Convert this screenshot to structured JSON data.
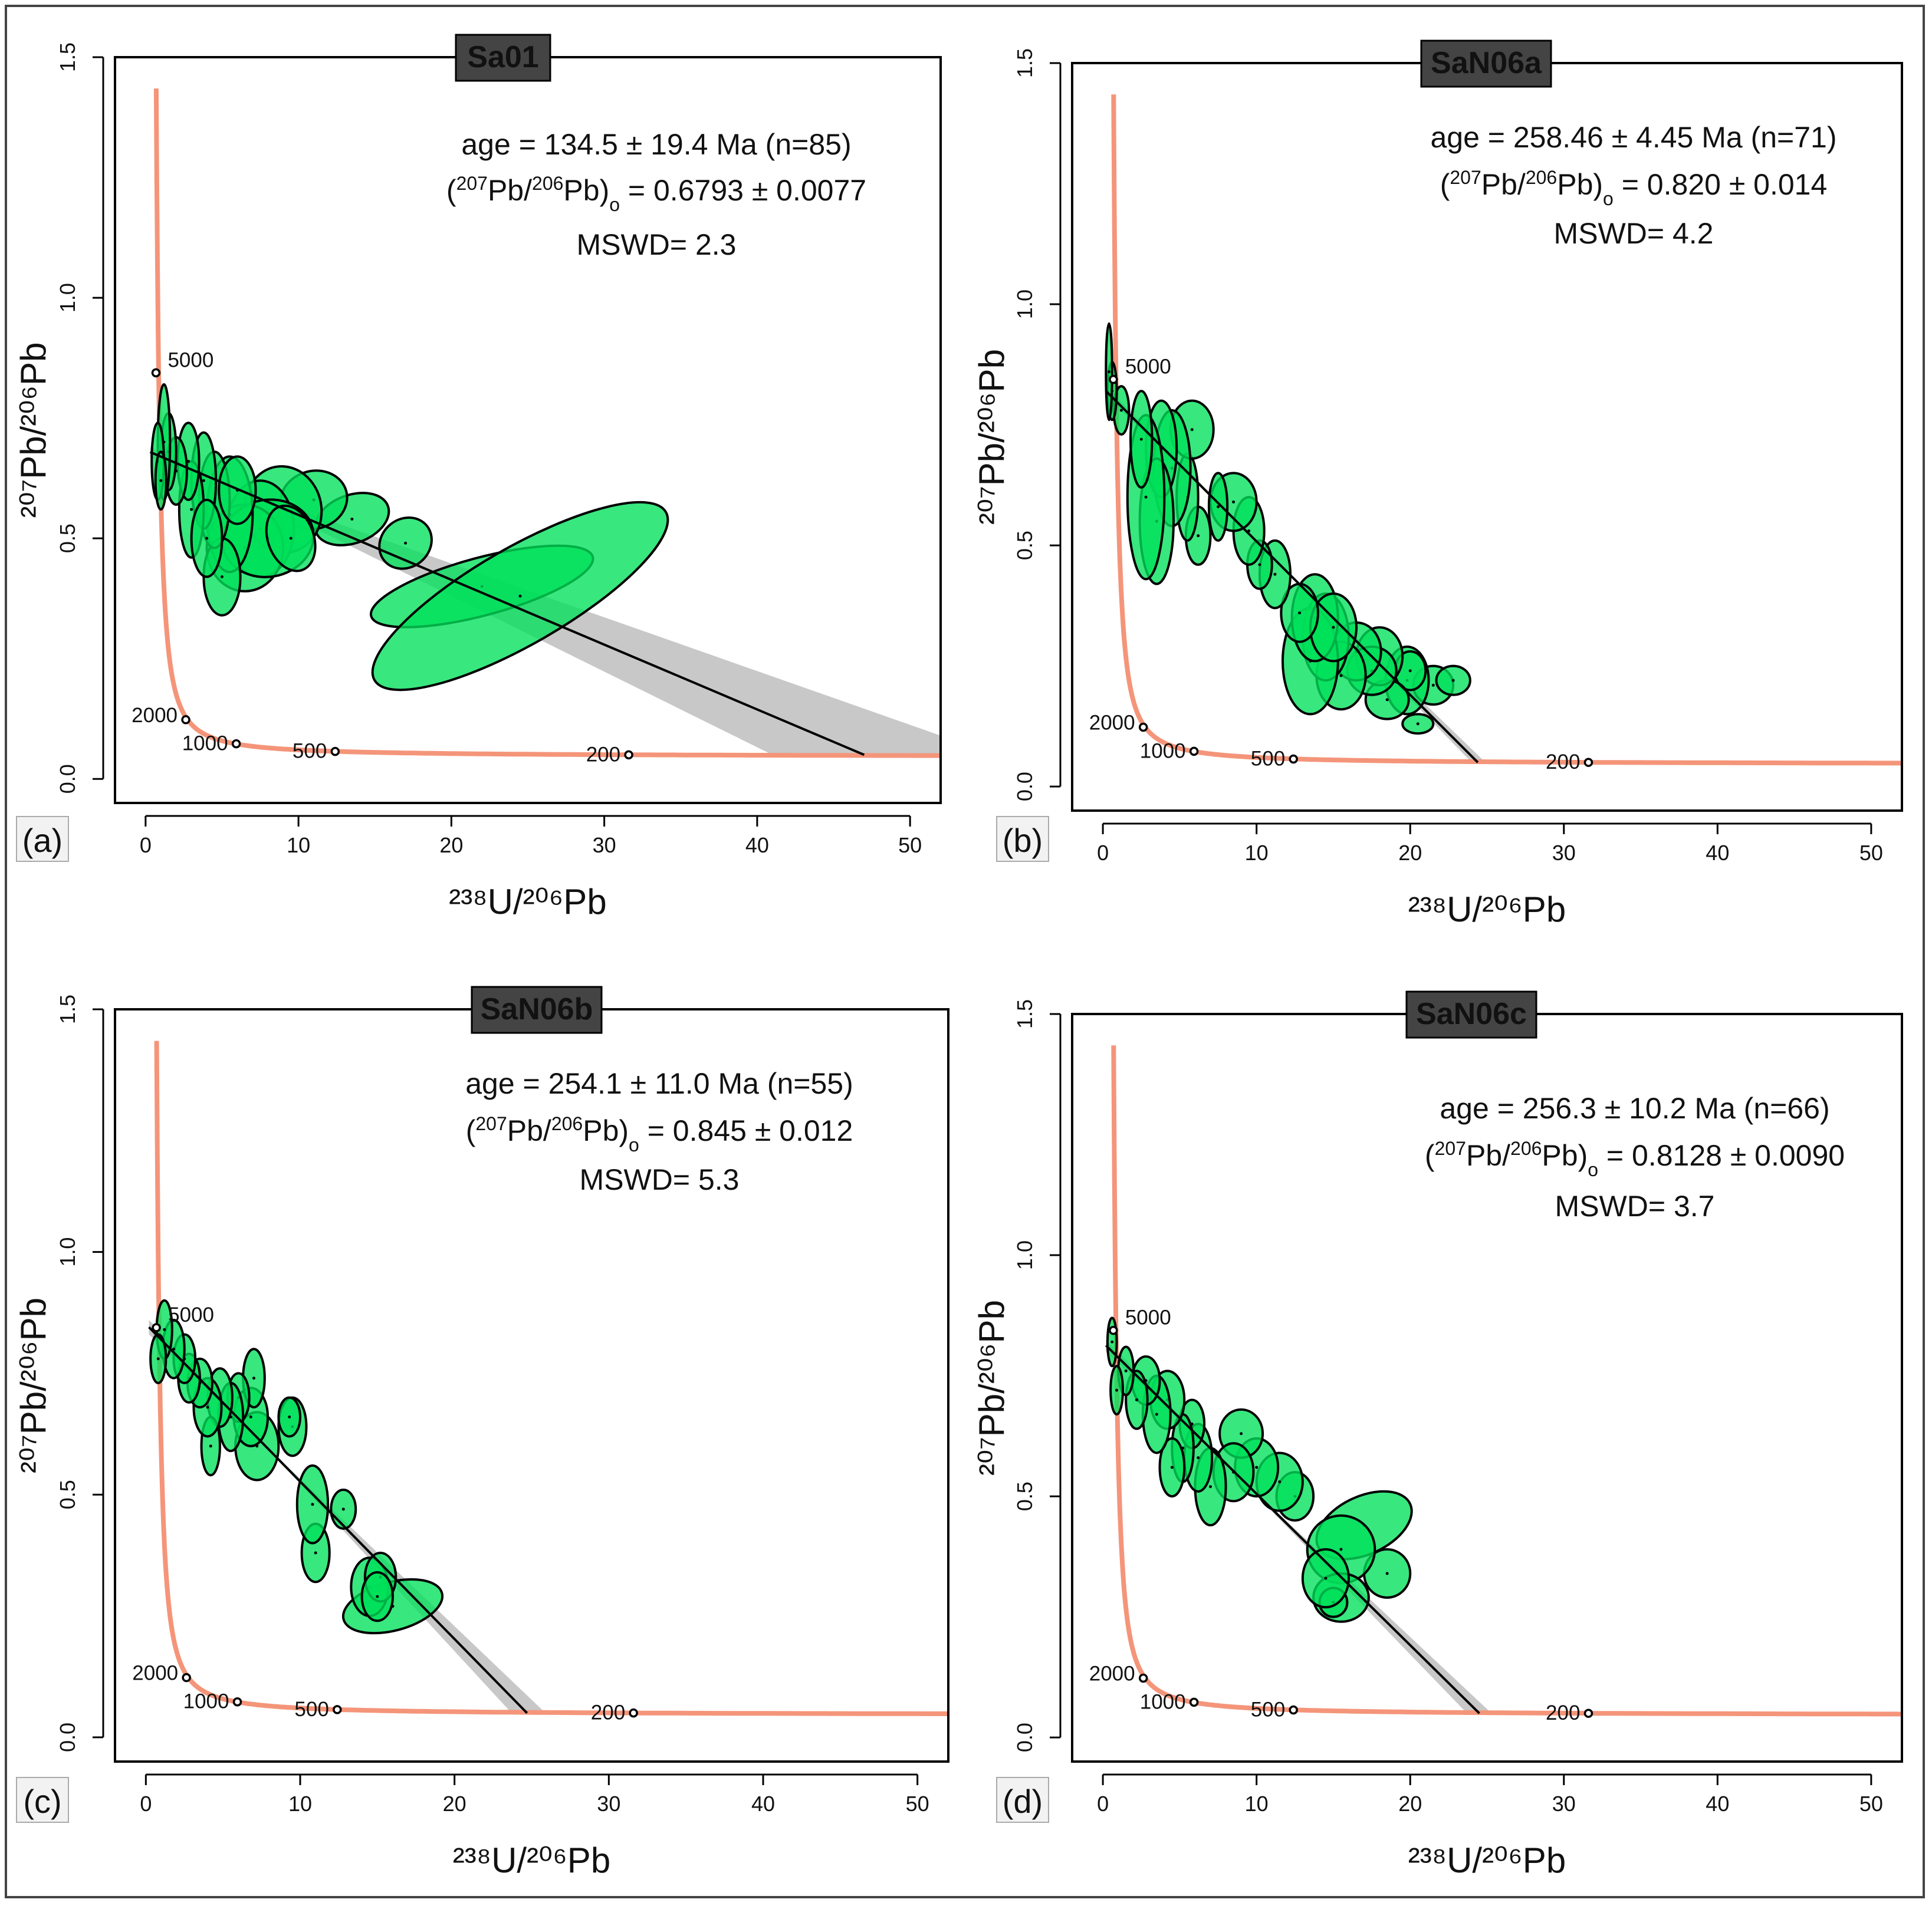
{
  "colors": {
    "curve": "#f4957a",
    "ellipse_fill": "#00e05a",
    "ellipse_stroke": "#000000",
    "band": "#c8c8c8",
    "title_bg": "#444444",
    "title_text": "#f5b800"
  },
  "chart_data": [
    {
      "type": "scatter",
      "kind": "Tera-Wasserburg concordia",
      "panel": "(a)",
      "title": "Sa01",
      "xlabel": "²³⁸U/²⁰⁶Pb",
      "ylabel": "²⁰⁷Pb/²⁰⁶Pb",
      "xlim": [
        -2,
        52
      ],
      "ylim": [
        -0.05,
        1.5
      ],
      "xticks": [
        "0",
        "10",
        "20",
        "30",
        "40",
        "50"
      ],
      "yticks": [
        "0.0",
        "0.5",
        "1.0",
        "1.5"
      ],
      "annotation": {
        "age": "age = 134.5 ± 19.4 Ma (n=85)",
        "intercept_prefix": "(",
        "intercept_sup1": "207",
        "intercept_mid": "Pb/",
        "intercept_sup2": "206",
        "intercept_pb": "Pb)",
        "intercept_sub": "o",
        "intercept_value": " = 0.6793 ± 0.0077",
        "mswd": "MSWD= 2.3"
      },
      "concordia_labels": [
        {
          "age": "5000",
          "x": 0.68,
          "y": 0.844
        },
        {
          "age": "2000",
          "x": 2.63,
          "y": 0.123
        },
        {
          "age": "1000",
          "x": 5.93,
          "y": 0.073
        },
        {
          "age": "500",
          "x": 12.4,
          "y": 0.057
        },
        {
          "age": "200",
          "x": 31.6,
          "y": 0.05
        }
      ],
      "regression": {
        "x0": 0.3,
        "y0": 0.6793,
        "x1": 47.0,
        "y1": 0.05
      },
      "band": [
        [
          0.3,
          0.69
        ],
        [
          41,
          0.05
        ],
        [
          52,
          0.05
        ],
        [
          52,
          0.09
        ],
        [
          0.3,
          0.668
        ]
      ],
      "ellipses": [
        {
          "x": 22.0,
          "y": 0.4,
          "rx": 7.5,
          "ry": 0.06,
          "rot": 15
        },
        {
          "x": 24.5,
          "y": 0.38,
          "rx": 11.0,
          "ry": 0.1,
          "rot": 30
        },
        {
          "x": 17.0,
          "y": 0.49,
          "rx": 1.8,
          "ry": 0.05,
          "rot": 40
        },
        {
          "x": 13.5,
          "y": 0.54,
          "rx": 2.5,
          "ry": 0.05,
          "rot": 20
        },
        {
          "x": 11.0,
          "y": 0.58,
          "rx": 2.2,
          "ry": 0.06,
          "rot": 15
        },
        {
          "x": 9.0,
          "y": 0.56,
          "rx": 2.5,
          "ry": 0.09,
          "rot": 10
        },
        {
          "x": 7.5,
          "y": 0.52,
          "rx": 2.2,
          "ry": 0.1,
          "rot": 0
        },
        {
          "x": 6.5,
          "y": 0.48,
          "rx": 2.5,
          "ry": 0.09,
          "rot": 0
        },
        {
          "x": 8.0,
          "y": 0.5,
          "rx": 3.0,
          "ry": 0.08,
          "rot": 10
        },
        {
          "x": 5.5,
          "y": 0.55,
          "rx": 1.5,
          "ry": 0.12,
          "rot": 0
        },
        {
          "x": 5.0,
          "y": 0.42,
          "rx": 1.2,
          "ry": 0.08,
          "rot": 0
        },
        {
          "x": 4.5,
          "y": 0.58,
          "rx": 1.0,
          "ry": 0.1,
          "rot": 0
        },
        {
          "x": 3.8,
          "y": 0.62,
          "rx": 0.8,
          "ry": 0.1,
          "rot": 0
        },
        {
          "x": 3.0,
          "y": 0.56,
          "rx": 0.8,
          "ry": 0.1,
          "rot": 0
        },
        {
          "x": 2.8,
          "y": 0.66,
          "rx": 0.7,
          "ry": 0.08,
          "rot": 0
        },
        {
          "x": 2.0,
          "y": 0.64,
          "rx": 0.7,
          "ry": 0.07,
          "rot": 0
        },
        {
          "x": 1.5,
          "y": 0.68,
          "rx": 0.5,
          "ry": 0.08,
          "rot": 0
        },
        {
          "x": 1.2,
          "y": 0.7,
          "rx": 0.4,
          "ry": 0.12,
          "rot": 0
        },
        {
          "x": 0.8,
          "y": 0.66,
          "rx": 0.4,
          "ry": 0.08,
          "rot": 0
        },
        {
          "x": 1.0,
          "y": 0.62,
          "rx": 0.35,
          "ry": 0.06,
          "rot": 0
        },
        {
          "x": 6.0,
          "y": 0.6,
          "rx": 1.2,
          "ry": 0.07,
          "rot": 0
        },
        {
          "x": 9.5,
          "y": 0.5,
          "rx": 1.5,
          "ry": 0.07,
          "rot": 20
        },
        {
          "x": 4.0,
          "y": 0.5,
          "rx": 1.0,
          "ry": 0.08,
          "rot": 0
        }
      ]
    },
    {
      "type": "scatter",
      "kind": "Tera-Wasserburg concordia",
      "panel": "(b)",
      "title": "SaN06a",
      "xlabel": "²³⁸U/²⁰⁶Pb",
      "ylabel": "²⁰⁷Pb/²⁰⁶Pb",
      "xlim": [
        -2,
        52
      ],
      "ylim": [
        -0.05,
        1.5
      ],
      "xticks": [
        "0",
        "10",
        "20",
        "30",
        "40",
        "50"
      ],
      "yticks": [
        "0.0",
        "0.5",
        "1.0",
        "1.5"
      ],
      "annotation": {
        "age": "age = 258.46 ± 4.45 Ma (n=71)",
        "intercept_prefix": "(",
        "intercept_sup1": "207",
        "intercept_mid": "Pb/",
        "intercept_sup2": "206",
        "intercept_pb": "Pb)",
        "intercept_sub": "o",
        "intercept_value": " = 0.820 ± 0.014",
        "mswd": "MSWD= 4.2"
      },
      "concordia_labels": [
        {
          "age": "5000",
          "x": 0.68,
          "y": 0.844
        },
        {
          "age": "2000",
          "x": 2.63,
          "y": 0.123
        },
        {
          "age": "1000",
          "x": 5.93,
          "y": 0.073
        },
        {
          "age": "500",
          "x": 12.4,
          "y": 0.057
        },
        {
          "age": "200",
          "x": 31.6,
          "y": 0.05
        }
      ],
      "regression": {
        "x0": 0.2,
        "y0": 0.82,
        "x1": 24.4,
        "y1": 0.05
      },
      "band": [
        [
          0.2,
          0.83
        ],
        [
          24.0,
          0.05
        ],
        [
          24.9,
          0.05
        ],
        [
          0.2,
          0.81
        ]
      ],
      "ellipses": [
        {
          "x": 20.5,
          "y": 0.13,
          "rx": 1.0,
          "ry": 0.02,
          "rot": 0
        },
        {
          "x": 21.5,
          "y": 0.21,
          "rx": 1.3,
          "ry": 0.04,
          "rot": 0
        },
        {
          "x": 22.8,
          "y": 0.22,
          "rx": 1.1,
          "ry": 0.03,
          "rot": 0
        },
        {
          "x": 19.8,
          "y": 0.22,
          "rx": 1.4,
          "ry": 0.07,
          "rot": 0
        },
        {
          "x": 20.0,
          "y": 0.24,
          "rx": 1.0,
          "ry": 0.04,
          "rot": 0
        },
        {
          "x": 18.5,
          "y": 0.18,
          "rx": 1.4,
          "ry": 0.04,
          "rot": 0
        },
        {
          "x": 18.0,
          "y": 0.27,
          "rx": 1.5,
          "ry": 0.06,
          "rot": 0
        },
        {
          "x": 17.5,
          "y": 0.24,
          "rx": 1.6,
          "ry": 0.05,
          "rot": 0
        },
        {
          "x": 16.5,
          "y": 0.28,
          "rx": 1.6,
          "ry": 0.06,
          "rot": 0
        },
        {
          "x": 15.5,
          "y": 0.23,
          "rx": 1.6,
          "ry": 0.07,
          "rot": 0
        },
        {
          "x": 14.5,
          "y": 0.31,
          "rx": 1.5,
          "ry": 0.09,
          "rot": 0
        },
        {
          "x": 13.5,
          "y": 0.26,
          "rx": 1.8,
          "ry": 0.11,
          "rot": 0
        },
        {
          "x": 13.8,
          "y": 0.35,
          "rx": 1.5,
          "ry": 0.09,
          "rot": 0
        },
        {
          "x": 15.0,
          "y": 0.33,
          "rx": 1.5,
          "ry": 0.07,
          "rot": 0
        },
        {
          "x": 12.8,
          "y": 0.36,
          "rx": 1.2,
          "ry": 0.06,
          "rot": 0
        },
        {
          "x": 11.2,
          "y": 0.44,
          "rx": 1.0,
          "ry": 0.07,
          "rot": 0
        },
        {
          "x": 10.2,
          "y": 0.46,
          "rx": 0.8,
          "ry": 0.05,
          "rot": 0
        },
        {
          "x": 9.5,
          "y": 0.53,
          "rx": 1.0,
          "ry": 0.07,
          "rot": 0
        },
        {
          "x": 8.5,
          "y": 0.59,
          "rx": 1.5,
          "ry": 0.06,
          "rot": 0
        },
        {
          "x": 7.5,
          "y": 0.58,
          "rx": 0.6,
          "ry": 0.07,
          "rot": 0
        },
        {
          "x": 6.2,
          "y": 0.52,
          "rx": 0.8,
          "ry": 0.06,
          "rot": 0
        },
        {
          "x": 5.5,
          "y": 0.6,
          "rx": 0.7,
          "ry": 0.09,
          "rot": 0
        },
        {
          "x": 5.8,
          "y": 0.74,
          "rx": 1.4,
          "ry": 0.06,
          "rot": 0
        },
        {
          "x": 4.5,
          "y": 0.66,
          "rx": 1.2,
          "ry": 0.12,
          "rot": 0
        },
        {
          "x": 3.8,
          "y": 0.7,
          "rx": 1.0,
          "ry": 0.1,
          "rot": 0
        },
        {
          "x": 3.5,
          "y": 0.55,
          "rx": 1.1,
          "ry": 0.13,
          "rot": 0
        },
        {
          "x": 2.8,
          "y": 0.6,
          "rx": 1.2,
          "ry": 0.17,
          "rot": 0
        },
        {
          "x": 2.5,
          "y": 0.72,
          "rx": 0.7,
          "ry": 0.1,
          "rot": 0
        },
        {
          "x": 1.2,
          "y": 0.78,
          "rx": 0.5,
          "ry": 0.05,
          "rot": 0
        },
        {
          "x": 0.6,
          "y": 0.82,
          "rx": 0.3,
          "ry": 0.06,
          "rot": 0
        },
        {
          "x": 0.4,
          "y": 0.86,
          "rx": 0.2,
          "ry": 0.1,
          "rot": 0
        }
      ]
    },
    {
      "type": "scatter",
      "kind": "Tera-Wasserburg concordia",
      "panel": "(c)",
      "title": "SaN06b",
      "xlabel": "²³⁸U/²⁰⁶Pb",
      "ylabel": "²⁰⁷Pb/²⁰⁶Pb",
      "xlim": [
        -2,
        52
      ],
      "ylim": [
        -0.05,
        1.5
      ],
      "xticks": [
        "0",
        "10",
        "20",
        "30",
        "40",
        "50"
      ],
      "yticks": [
        "0.0",
        "0.5",
        "1.0",
        "1.5"
      ],
      "annotation": {
        "age": "age = 254.1 ± 11.0 Ma (n=55)",
        "intercept_prefix": "(",
        "intercept_sup1": "207",
        "intercept_mid": "Pb/",
        "intercept_sup2": "206",
        "intercept_pb": "Pb)",
        "intercept_sub": "o",
        "intercept_value": " = 0.845 ± 0.012",
        "mswd": "MSWD= 5.3"
      },
      "concordia_labels": [
        {
          "age": "5000",
          "x": 0.68,
          "y": 0.844
        },
        {
          "age": "2000",
          "x": 2.63,
          "y": 0.123
        },
        {
          "age": "1000",
          "x": 5.93,
          "y": 0.073
        },
        {
          "age": "500",
          "x": 12.4,
          "y": 0.057
        },
        {
          "age": "200",
          "x": 31.6,
          "y": 0.05
        }
      ],
      "regression": {
        "x0": 0.2,
        "y0": 0.845,
        "x1": 24.7,
        "y1": 0.05
      },
      "band": [
        [
          0.2,
          0.86
        ],
        [
          23.7,
          0.05
        ],
        [
          25.9,
          0.05
        ],
        [
          0.2,
          0.83
        ]
      ],
      "ellipses": [
        {
          "x": 16.0,
          "y": 0.27,
          "rx": 3.3,
          "ry": 0.05,
          "rot": 15
        },
        {
          "x": 14.5,
          "y": 0.31,
          "rx": 1.2,
          "ry": 0.06,
          "rot": 0
        },
        {
          "x": 15.2,
          "y": 0.33,
          "rx": 1.0,
          "ry": 0.05,
          "rot": 0
        },
        {
          "x": 15.0,
          "y": 0.29,
          "rx": 1.0,
          "ry": 0.05,
          "rot": 0
        },
        {
          "x": 12.8,
          "y": 0.47,
          "rx": 0.8,
          "ry": 0.04,
          "rot": 0
        },
        {
          "x": 11.0,
          "y": 0.38,
          "rx": 0.9,
          "ry": 0.06,
          "rot": 0
        },
        {
          "x": 10.8,
          "y": 0.48,
          "rx": 1.0,
          "ry": 0.08,
          "rot": 0
        },
        {
          "x": 9.5,
          "y": 0.64,
          "rx": 0.9,
          "ry": 0.06,
          "rot": 0
        },
        {
          "x": 9.3,
          "y": 0.66,
          "rx": 0.7,
          "ry": 0.04,
          "rot": 0
        },
        {
          "x": 7.2,
          "y": 0.6,
          "rx": 1.4,
          "ry": 0.07,
          "rot": 0
        },
        {
          "x": 6.8,
          "y": 0.66,
          "rx": 1.1,
          "ry": 0.06,
          "rot": 0
        },
        {
          "x": 7.0,
          "y": 0.74,
          "rx": 0.7,
          "ry": 0.06,
          "rot": 0
        },
        {
          "x": 6.0,
          "y": 0.7,
          "rx": 0.7,
          "ry": 0.05,
          "rot": 0
        },
        {
          "x": 5.5,
          "y": 0.66,
          "rx": 0.8,
          "ry": 0.07,
          "rot": 0
        },
        {
          "x": 4.8,
          "y": 0.7,
          "rx": 0.8,
          "ry": 0.06,
          "rot": 0
        },
        {
          "x": 4.2,
          "y": 0.6,
          "rx": 0.6,
          "ry": 0.06,
          "rot": 0
        },
        {
          "x": 4.0,
          "y": 0.68,
          "rx": 0.9,
          "ry": 0.06,
          "rot": 0
        },
        {
          "x": 3.5,
          "y": 0.73,
          "rx": 0.8,
          "ry": 0.05,
          "rot": 0
        },
        {
          "x": 2.8,
          "y": 0.74,
          "rx": 0.7,
          "ry": 0.05,
          "rot": 0
        },
        {
          "x": 2.5,
          "y": 0.78,
          "rx": 0.7,
          "ry": 0.05,
          "rot": 0
        },
        {
          "x": 1.8,
          "y": 0.8,
          "rx": 0.7,
          "ry": 0.06,
          "rot": 0
        },
        {
          "x": 1.2,
          "y": 0.84,
          "rx": 0.5,
          "ry": 0.06,
          "rot": 0
        },
        {
          "x": 0.8,
          "y": 0.78,
          "rx": 0.5,
          "ry": 0.05,
          "rot": 0
        }
      ]
    },
    {
      "type": "scatter",
      "kind": "Tera-Wasserburg concordia",
      "panel": "(d)",
      "title": "SaN06c",
      "xlabel": "²³⁸U/²⁰⁶Pb",
      "ylabel": "²⁰⁷Pb/²⁰⁶Pb",
      "xlim": [
        -2,
        52
      ],
      "ylim": [
        -0.05,
        1.5
      ],
      "xticks": [
        "0",
        "10",
        "20",
        "30",
        "40",
        "50"
      ],
      "yticks": [
        "0.0",
        "0.5",
        "1.0",
        "1.5"
      ],
      "annotation": {
        "age": "age = 256.3 ± 10.2 Ma (n=66)",
        "intercept_prefix": "(",
        "intercept_sup1": "207",
        "intercept_mid": "Pb/",
        "intercept_sup2": "206",
        "intercept_pb": "Pb)",
        "intercept_sub": "o",
        "intercept_value": " = 0.8128 ± 0.0090",
        "mswd": "MSWD= 3.7"
      },
      "concordia_labels": [
        {
          "age": "5000",
          "x": 0.68,
          "y": 0.844
        },
        {
          "age": "2000",
          "x": 2.63,
          "y": 0.123
        },
        {
          "age": "1000",
          "x": 5.93,
          "y": 0.073
        },
        {
          "age": "500",
          "x": 12.4,
          "y": 0.057
        },
        {
          "age": "200",
          "x": 31.6,
          "y": 0.05
        }
      ],
      "regression": {
        "x0": 0.2,
        "y0": 0.8128,
        "x1": 24.5,
        "y1": 0.05
      },
      "band": [
        [
          0.2,
          0.825
        ],
        [
          23.7,
          0.05
        ],
        [
          25.3,
          0.05
        ],
        [
          0.2,
          0.8
        ]
      ],
      "ellipses": [
        {
          "x": 18.5,
          "y": 0.34,
          "rx": 1.5,
          "ry": 0.05,
          "rot": 0
        },
        {
          "x": 17.0,
          "y": 0.44,
          "rx": 3.3,
          "ry": 0.06,
          "rot": 25
        },
        {
          "x": 15.5,
          "y": 0.39,
          "rx": 2.2,
          "ry": 0.07,
          "rot": 10
        },
        {
          "x": 15.5,
          "y": 0.29,
          "rx": 1.8,
          "ry": 0.05,
          "rot": 0
        },
        {
          "x": 15.0,
          "y": 0.28,
          "rx": 0.9,
          "ry": 0.03,
          "rot": 0
        },
        {
          "x": 14.5,
          "y": 0.33,
          "rx": 1.5,
          "ry": 0.06,
          "rot": 0
        },
        {
          "x": 12.5,
          "y": 0.5,
          "rx": 1.2,
          "ry": 0.05,
          "rot": 0
        },
        {
          "x": 11.5,
          "y": 0.53,
          "rx": 1.5,
          "ry": 0.06,
          "rot": 0
        },
        {
          "x": 10.0,
          "y": 0.56,
          "rx": 1.4,
          "ry": 0.06,
          "rot": 0
        },
        {
          "x": 9.0,
          "y": 0.63,
          "rx": 1.4,
          "ry": 0.05,
          "rot": 0
        },
        {
          "x": 8.5,
          "y": 0.55,
          "rx": 1.3,
          "ry": 0.06,
          "rot": 0
        },
        {
          "x": 7.0,
          "y": 0.52,
          "rx": 1.0,
          "ry": 0.08,
          "rot": 0
        },
        {
          "x": 6.2,
          "y": 0.58,
          "rx": 0.9,
          "ry": 0.07,
          "rot": 0
        },
        {
          "x": 5.8,
          "y": 0.65,
          "rx": 0.8,
          "ry": 0.05,
          "rot": 0
        },
        {
          "x": 5.2,
          "y": 0.6,
          "rx": 0.7,
          "ry": 0.07,
          "rot": 0
        },
        {
          "x": 4.5,
          "y": 0.56,
          "rx": 0.8,
          "ry": 0.06,
          "rot": 0
        },
        {
          "x": 4.2,
          "y": 0.7,
          "rx": 1.1,
          "ry": 0.06,
          "rot": 0
        },
        {
          "x": 3.5,
          "y": 0.67,
          "rx": 0.9,
          "ry": 0.08,
          "rot": 0
        },
        {
          "x": 2.8,
          "y": 0.74,
          "rx": 0.9,
          "ry": 0.05,
          "rot": 0
        },
        {
          "x": 2.2,
          "y": 0.7,
          "rx": 0.7,
          "ry": 0.06,
          "rot": 0
        },
        {
          "x": 1.5,
          "y": 0.76,
          "rx": 0.5,
          "ry": 0.05,
          "rot": 0
        },
        {
          "x": 0.9,
          "y": 0.72,
          "rx": 0.4,
          "ry": 0.05,
          "rot": 0
        },
        {
          "x": 0.6,
          "y": 0.82,
          "rx": 0.3,
          "ry": 0.05,
          "rot": 0
        }
      ]
    }
  ]
}
